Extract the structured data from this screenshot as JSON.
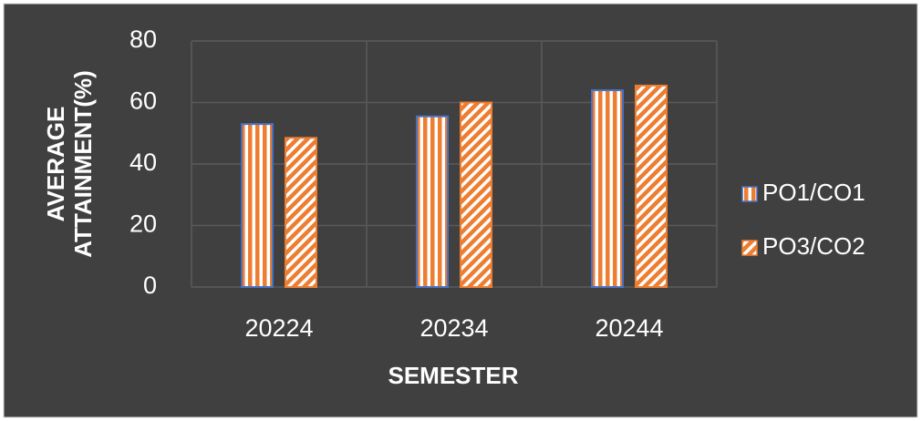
{
  "chart_data": {
    "type": "bar",
    "x_label": "SEMESTER",
    "y_label": "AVERAGE ATTAINMENT(%)",
    "categories": [
      "20224",
      "20234",
      "20244"
    ],
    "series": [
      {
        "name": "PO1/CO1",
        "color": "#ed7d31",
        "edge": "#4472c4",
        "pattern": "vertical",
        "values": [
          53,
          55.5,
          64
        ]
      },
      {
        "name": "PO3/CO2",
        "color": "#ed7d31",
        "edge": "#ed7d31",
        "pattern": "diagonal",
        "values": [
          48.5,
          60,
          65.5
        ]
      }
    ],
    "ylim": [
      0,
      80
    ],
    "yticks": [
      0,
      20,
      40,
      60,
      80
    ],
    "grid": true,
    "legend": "right"
  }
}
